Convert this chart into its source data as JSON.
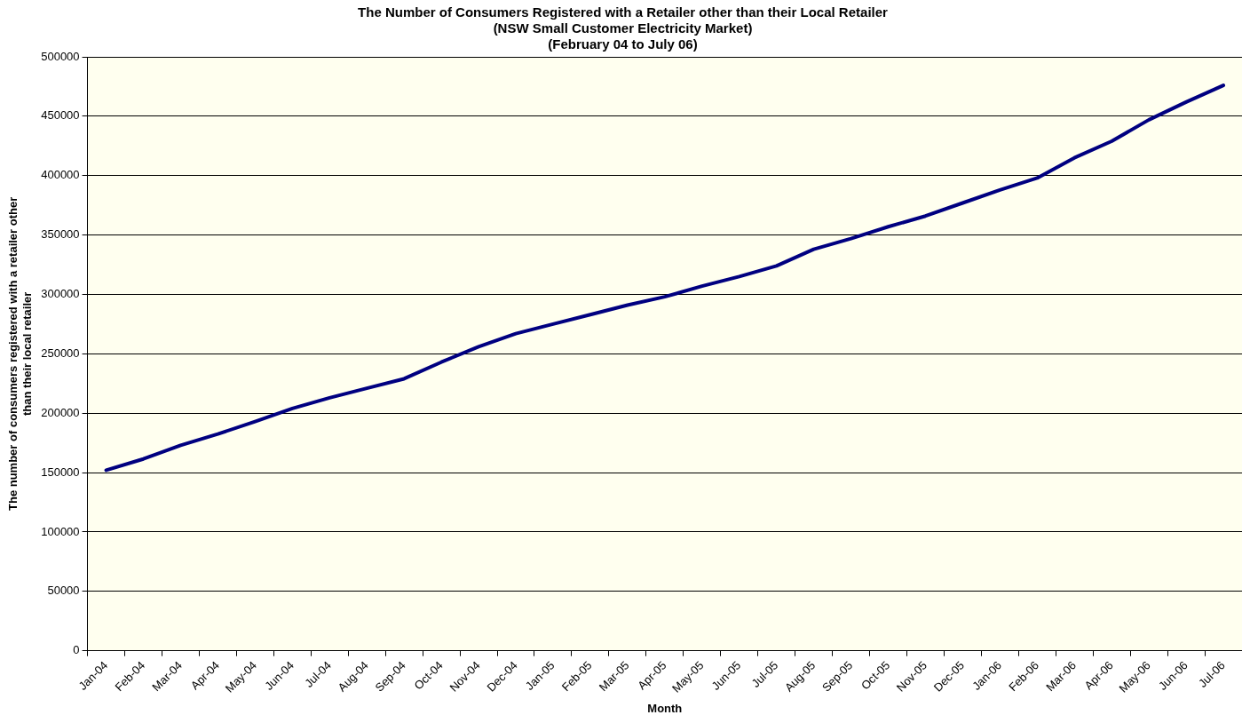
{
  "chart_data": {
    "type": "line",
    "title": "The Number of Consumers Registered with a Retailer other than their Local Retailer\n(NSW Small Customer Electricity Market)\n(February 04 to July 06)",
    "xlabel": "Month",
    "ylabel": "The number of consumers registered with a retailer other\nthan their local retailer",
    "categories": [
      "Jan-04",
      "Feb-04",
      "Mar-04",
      "Apr-04",
      "May-04",
      "Jun-04",
      "Jul-04",
      "Aug-04",
      "Sep-04",
      "Oct-04",
      "Nov-04",
      "Dec-04",
      "Jan-05",
      "Feb-05",
      "Mar-05",
      "Apr-05",
      "May-05",
      "Jun-05",
      "Jul-05",
      "Aug-05",
      "Sep-05",
      "Oct-05",
      "Nov-05",
      "Dec-05",
      "Jan-06",
      "Feb-06",
      "Mar-06",
      "Apr-06",
      "May-06",
      "Jun-06",
      "Jul-06"
    ],
    "series": [
      {
        "color": "#000080",
        "values": [
          152000,
          161500,
          173000,
          182500,
          193000,
          204000,
          213000,
          221000,
          229000,
          243000,
          256000,
          267000,
          275000,
          283000,
          291000,
          298000,
          307000,
          315000,
          324000,
          338000,
          347000,
          357000,
          366000,
          377000,
          388000,
          398000,
          415000,
          429000,
          447000,
          462000,
          476000
        ]
      }
    ],
    "ylim": [
      0,
      500000
    ],
    "yticks": [
      0,
      50000,
      100000,
      150000,
      200000,
      250000,
      300000,
      350000,
      400000,
      450000,
      500000
    ],
    "grid": "y",
    "legend": false,
    "marker": "none",
    "line_style": "solid"
  }
}
